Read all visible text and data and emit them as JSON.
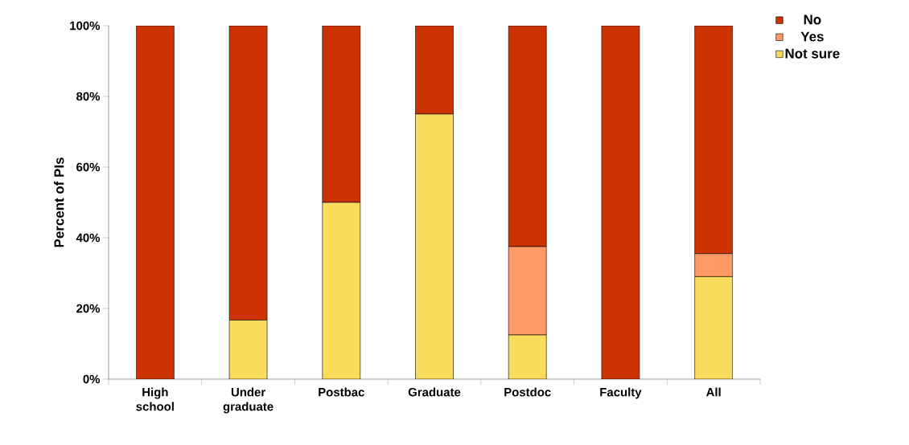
{
  "chart_data": {
    "type": "bar",
    "stacked": true,
    "ylabel": "Percent of PIs",
    "categories": [
      "High school",
      "Under graduate",
      "Postbac",
      "Graduate",
      "Postdoc",
      "Faculty",
      "All"
    ],
    "series": [
      {
        "name": "Not sure",
        "color": "#f9dc5c",
        "values": [
          0,
          16.7,
          50,
          75,
          12.5,
          0,
          29
        ]
      },
      {
        "name": "Yes",
        "color": "#ff9966",
        "values": [
          0,
          0,
          0,
          0,
          25,
          0,
          6.5
        ]
      },
      {
        "name": "No",
        "color": "#cc3300",
        "values": [
          100,
          83.3,
          50,
          25,
          62.5,
          100,
          64.5
        ]
      }
    ],
    "ylim": [
      0,
      100
    ],
    "yticks": [
      {
        "value": 0,
        "label": "0%"
      },
      {
        "value": 20,
        "label": "20%"
      },
      {
        "value": 40,
        "label": "40%"
      },
      {
        "value": 60,
        "label": "60%"
      },
      {
        "value": 80,
        "label": "80%"
      },
      {
        "value": 100,
        "label": "100%"
      }
    ],
    "grid": false,
    "legend": "top right"
  }
}
